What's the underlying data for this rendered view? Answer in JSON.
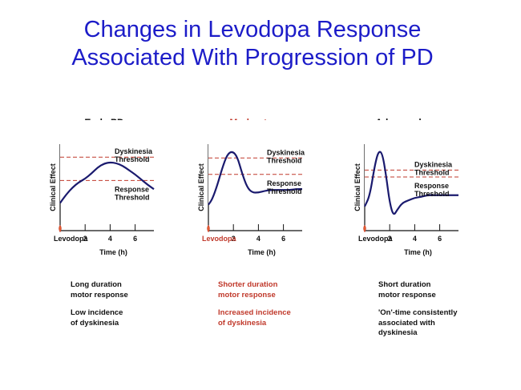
{
  "slide": {
    "title_line1": "Changes in Levodopa Response",
    "title_line2": "Associated With Progression of PD"
  },
  "colors": {
    "title": "#1c1cc8",
    "curve": "#1a1a6e",
    "fill": "#6d5fae",
    "threshold_line": "#c0392b",
    "highlight_text": "#c0392b",
    "normal_text": "#111111"
  },
  "chart_data": [
    {
      "type": "line",
      "title": "Early PD",
      "title_lines": [
        "Early PD"
      ],
      "title_color": "#111111",
      "ylabel": "Clinical Effect",
      "xlabel": "Time (h)",
      "x_origin_label": "Levodopa",
      "x_ticks": [
        2,
        4,
        6
      ],
      "x_tick_labels": [
        "2",
        "4",
        "6"
      ],
      "xlim": [
        0,
        7.5
      ],
      "ylim": [
        0,
        10
      ],
      "dyskinesia_threshold": 8.5,
      "response_threshold": 5.8,
      "dyskinesia_label": [
        "Dyskinesia",
        "Threshold"
      ],
      "response_label": [
        "Response",
        "Threshold"
      ],
      "curve": {
        "x": [
          0,
          0.5,
          1,
          1.5,
          2,
          2.5,
          3,
          3.5,
          4,
          4.5,
          5,
          5.5,
          6,
          6.5,
          7,
          7.5
        ],
        "y": [
          3.2,
          4.2,
          5.0,
          5.6,
          6.0,
          6.6,
          7.3,
          7.75,
          7.9,
          7.8,
          7.5,
          7.0,
          6.5,
          5.9,
          5.3,
          4.8
        ]
      },
      "notes": [
        "Long duration\nmotor response",
        "Low incidence\nof dyskinesia"
      ],
      "notes_color": "#111111"
    },
    {
      "type": "line",
      "title": "Moderate PD",
      "title_lines": [
        "Moderate",
        "PD"
      ],
      "title_color": "#c0392b",
      "ylabel": "Clinical Effect",
      "xlabel": "Time (h)",
      "x_origin_label": "Levodopa",
      "x_ticks": [
        2,
        4,
        6
      ],
      "x_tick_labels": [
        "2",
        "4",
        "6"
      ],
      "xlim": [
        0,
        7.5
      ],
      "ylim": [
        0,
        10
      ],
      "dyskinesia_threshold": 8.4,
      "response_threshold": 6.5,
      "dyskinesia_label": [
        "Dyskinesia",
        "Threshold"
      ],
      "response_label": [
        "Response",
        "Threshold"
      ],
      "curve": {
        "x": [
          0,
          0.3,
          0.7,
          1.1,
          1.5,
          1.9,
          2.3,
          2.7,
          3.1,
          3.5,
          4,
          4.5,
          5,
          5.5,
          6,
          6.5,
          7,
          7.5
        ],
        "y": [
          3.0,
          3.6,
          5.2,
          7.2,
          8.8,
          9.2,
          8.6,
          6.6,
          5.0,
          4.4,
          4.4,
          4.6,
          4.7,
          4.7,
          4.7,
          4.7,
          4.8,
          4.8
        ]
      },
      "notes": [
        "Shorter duration\nmotor response",
        "Increased incidence\nof dyskinesia"
      ],
      "notes_color": "#c0392b"
    },
    {
      "type": "line",
      "title": "Advanced PD",
      "title_lines": [
        "Advanced",
        "PD"
      ],
      "title_color": "#111111",
      "ylabel": "Clinical Effect",
      "xlabel": "Time (h)",
      "x_origin_label": "Levodopa",
      "x_ticks": [
        2,
        4,
        6
      ],
      "x_tick_labels": [
        "2",
        "4",
        "6"
      ],
      "xlim": [
        0,
        7.5
      ],
      "ylim": [
        0,
        10
      ],
      "dyskinesia_threshold": 7.0,
      "response_threshold": 6.2,
      "dyskinesia_label": [
        "Dyskinesia",
        "Threshold"
      ],
      "response_label": [
        "Response",
        "Threshold"
      ],
      "curve": {
        "x": [
          0,
          0.4,
          0.8,
          1.1,
          1.4,
          1.7,
          2.0,
          2.3,
          2.6,
          3.0,
          3.5,
          4,
          4.5,
          5,
          5.5,
          6,
          6.5,
          7,
          7.5
        ],
        "y": [
          2.8,
          4.0,
          7.5,
          9.2,
          9.0,
          6.5,
          3.2,
          1.7,
          2.4,
          3.2,
          3.5,
          3.8,
          3.9,
          4.1,
          4.1,
          4.1,
          4.1,
          4.1,
          4.1
        ]
      },
      "notes": [
        "Short duration\nmotor response",
        "'On'-time consistently\nassociated with\ndyskinesia"
      ],
      "notes_color": "#111111"
    }
  ]
}
